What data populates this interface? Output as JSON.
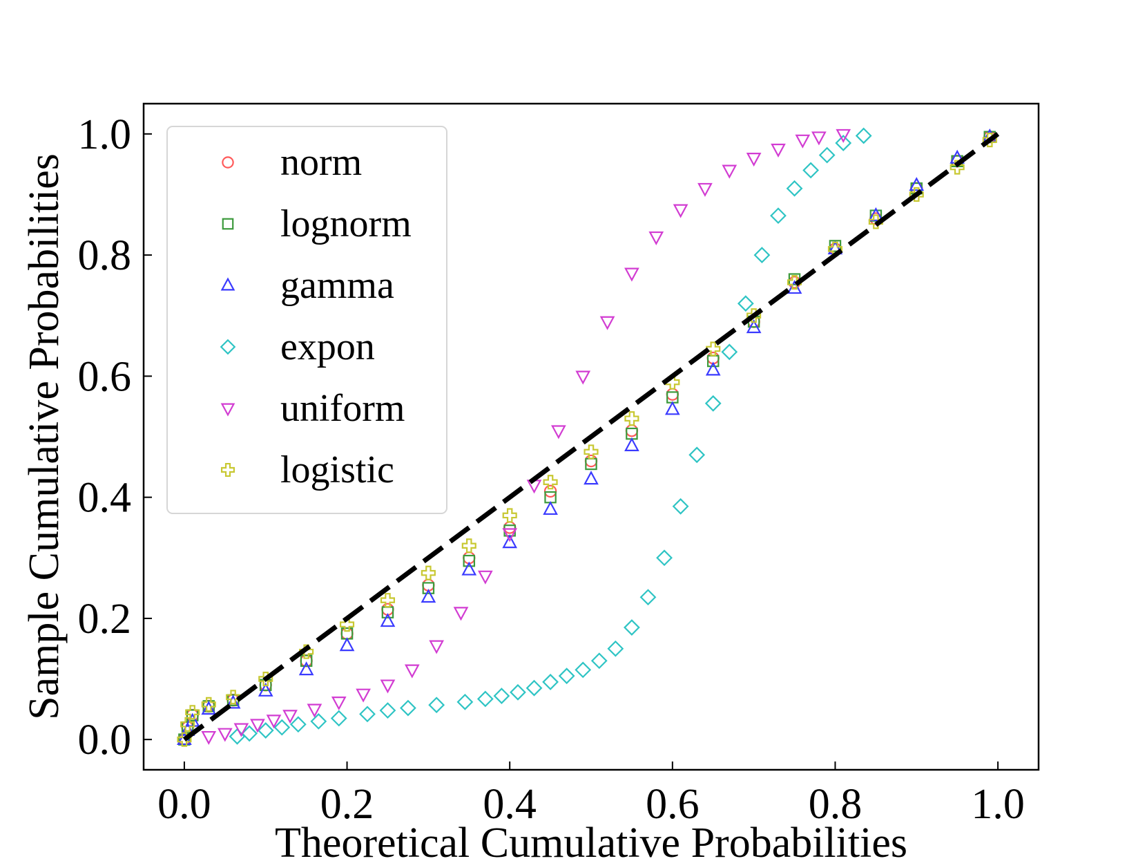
{
  "chart_data": {
    "type": "scatter",
    "title": "",
    "xlabel": "Theoretical Cumulative Probabilities",
    "ylabel": "Sample Cumulative Probabilities",
    "xlim": [
      -0.05,
      1.05
    ],
    "ylim": [
      -0.05,
      1.05
    ],
    "xticks": [
      "0.0",
      "0.2",
      "0.4",
      "0.6",
      "0.8",
      "1.0"
    ],
    "yticks": [
      "0.0",
      "0.2",
      "0.4",
      "0.6",
      "0.8",
      "1.0"
    ],
    "legend_position": "upper-left",
    "grid": false,
    "series": [
      {
        "name": "norm",
        "marker": "circle",
        "color": "#ff5a5a",
        "points": [
          [
            0.0,
            0.0
          ],
          [
            0.004,
            0.02
          ],
          [
            0.01,
            0.04
          ],
          [
            0.03,
            0.055
          ],
          [
            0.06,
            0.065
          ],
          [
            0.1,
            0.09
          ],
          [
            0.15,
            0.13
          ],
          [
            0.2,
            0.175
          ],
          [
            0.25,
            0.215
          ],
          [
            0.3,
            0.255
          ],
          [
            0.35,
            0.3
          ],
          [
            0.4,
            0.35
          ],
          [
            0.45,
            0.41
          ],
          [
            0.5,
            0.46
          ],
          [
            0.55,
            0.51
          ],
          [
            0.6,
            0.57
          ],
          [
            0.65,
            0.63
          ],
          [
            0.7,
            0.69
          ],
          [
            0.75,
            0.755
          ],
          [
            0.8,
            0.81
          ],
          [
            0.85,
            0.86
          ],
          [
            0.9,
            0.91
          ],
          [
            0.95,
            0.955
          ],
          [
            0.99,
            0.995
          ]
        ]
      },
      {
        "name": "lognorm",
        "marker": "square",
        "color": "#3c9a3c",
        "points": [
          [
            0.0,
            0.0
          ],
          [
            0.004,
            0.02
          ],
          [
            0.01,
            0.04
          ],
          [
            0.03,
            0.055
          ],
          [
            0.06,
            0.065
          ],
          [
            0.1,
            0.09
          ],
          [
            0.15,
            0.13
          ],
          [
            0.2,
            0.175
          ],
          [
            0.25,
            0.21
          ],
          [
            0.3,
            0.25
          ],
          [
            0.35,
            0.295
          ],
          [
            0.4,
            0.345
          ],
          [
            0.45,
            0.4
          ],
          [
            0.5,
            0.455
          ],
          [
            0.55,
            0.505
          ],
          [
            0.6,
            0.565
          ],
          [
            0.65,
            0.625
          ],
          [
            0.7,
            0.69
          ],
          [
            0.75,
            0.76
          ],
          [
            0.8,
            0.815
          ],
          [
            0.85,
            0.865
          ],
          [
            0.9,
            0.91
          ],
          [
            0.95,
            0.955
          ],
          [
            0.99,
            0.995
          ]
        ]
      },
      {
        "name": "gamma",
        "marker": "triangle-up",
        "color": "#3a3aff",
        "points": [
          [
            0.0,
            0.0
          ],
          [
            0.004,
            0.015
          ],
          [
            0.01,
            0.03
          ],
          [
            0.03,
            0.05
          ],
          [
            0.06,
            0.06
          ],
          [
            0.1,
            0.08
          ],
          [
            0.15,
            0.115
          ],
          [
            0.2,
            0.155
          ],
          [
            0.25,
            0.195
          ],
          [
            0.3,
            0.235
          ],
          [
            0.35,
            0.28
          ],
          [
            0.4,
            0.325
          ],
          [
            0.45,
            0.38
          ],
          [
            0.5,
            0.43
          ],
          [
            0.55,
            0.485
          ],
          [
            0.6,
            0.545
          ],
          [
            0.65,
            0.61
          ],
          [
            0.7,
            0.68
          ],
          [
            0.75,
            0.745
          ],
          [
            0.8,
            0.81
          ],
          [
            0.85,
            0.865
          ],
          [
            0.9,
            0.915
          ],
          [
            0.95,
            0.96
          ],
          [
            0.99,
            0.995
          ]
        ]
      },
      {
        "name": "expon",
        "marker": "diamond",
        "color": "#2ec4c4",
        "points": [
          [
            0.065,
            0.005
          ],
          [
            0.08,
            0.01
          ],
          [
            0.1,
            0.015
          ],
          [
            0.12,
            0.02
          ],
          [
            0.14,
            0.025
          ],
          [
            0.165,
            0.03
          ],
          [
            0.19,
            0.035
          ],
          [
            0.225,
            0.042
          ],
          [
            0.25,
            0.048
          ],
          [
            0.275,
            0.052
          ],
          [
            0.31,
            0.057
          ],
          [
            0.345,
            0.062
          ],
          [
            0.37,
            0.067
          ],
          [
            0.39,
            0.072
          ],
          [
            0.41,
            0.078
          ],
          [
            0.43,
            0.085
          ],
          [
            0.45,
            0.095
          ],
          [
            0.47,
            0.105
          ],
          [
            0.49,
            0.115
          ],
          [
            0.51,
            0.13
          ],
          [
            0.53,
            0.15
          ],
          [
            0.55,
            0.185
          ],
          [
            0.57,
            0.235
          ],
          [
            0.59,
            0.3
          ],
          [
            0.61,
            0.385
          ],
          [
            0.63,
            0.47
          ],
          [
            0.65,
            0.555
          ],
          [
            0.67,
            0.64
          ],
          [
            0.69,
            0.72
          ],
          [
            0.71,
            0.8
          ],
          [
            0.73,
            0.865
          ],
          [
            0.75,
            0.91
          ],
          [
            0.77,
            0.94
          ],
          [
            0.79,
            0.965
          ],
          [
            0.81,
            0.985
          ],
          [
            0.835,
            0.997
          ]
        ]
      },
      {
        "name": "uniform",
        "marker": "triangle-down",
        "color": "#d23cd2",
        "points": [
          [
            0.03,
            0.005
          ],
          [
            0.05,
            0.01
          ],
          [
            0.07,
            0.018
          ],
          [
            0.09,
            0.025
          ],
          [
            0.11,
            0.032
          ],
          [
            0.13,
            0.04
          ],
          [
            0.16,
            0.05
          ],
          [
            0.19,
            0.062
          ],
          [
            0.22,
            0.075
          ],
          [
            0.25,
            0.09
          ],
          [
            0.28,
            0.115
          ],
          [
            0.31,
            0.155
          ],
          [
            0.34,
            0.21
          ],
          [
            0.37,
            0.27
          ],
          [
            0.4,
            0.34
          ],
          [
            0.43,
            0.42
          ],
          [
            0.46,
            0.51
          ],
          [
            0.49,
            0.6
          ],
          [
            0.52,
            0.69
          ],
          [
            0.55,
            0.77
          ],
          [
            0.58,
            0.83
          ],
          [
            0.61,
            0.875
          ],
          [
            0.64,
            0.91
          ],
          [
            0.67,
            0.94
          ],
          [
            0.7,
            0.96
          ],
          [
            0.73,
            0.975
          ],
          [
            0.76,
            0.99
          ],
          [
            0.78,
            0.995
          ],
          [
            0.81,
            0.999
          ]
        ]
      },
      {
        "name": "logistic",
        "marker": "plus",
        "color": "#c8c832",
        "points": [
          [
            0.0,
            0.0
          ],
          [
            0.004,
            0.025
          ],
          [
            0.01,
            0.045
          ],
          [
            0.03,
            0.058
          ],
          [
            0.06,
            0.07
          ],
          [
            0.1,
            0.1
          ],
          [
            0.15,
            0.145
          ],
          [
            0.2,
            0.19
          ],
          [
            0.25,
            0.23
          ],
          [
            0.3,
            0.275
          ],
          [
            0.35,
            0.32
          ],
          [
            0.4,
            0.37
          ],
          [
            0.45,
            0.425
          ],
          [
            0.5,
            0.475
          ],
          [
            0.55,
            0.53
          ],
          [
            0.6,
            0.59
          ],
          [
            0.65,
            0.645
          ],
          [
            0.7,
            0.7
          ],
          [
            0.75,
            0.755
          ],
          [
            0.8,
            0.81
          ],
          [
            0.85,
            0.855
          ],
          [
            0.9,
            0.9
          ],
          [
            0.95,
            0.945
          ],
          [
            0.99,
            0.99
          ]
        ]
      }
    ],
    "reference_line": {
      "style": "dashed",
      "color": "#000000",
      "x": [
        0.0,
        1.0
      ],
      "y": [
        0.0,
        1.0
      ]
    }
  }
}
